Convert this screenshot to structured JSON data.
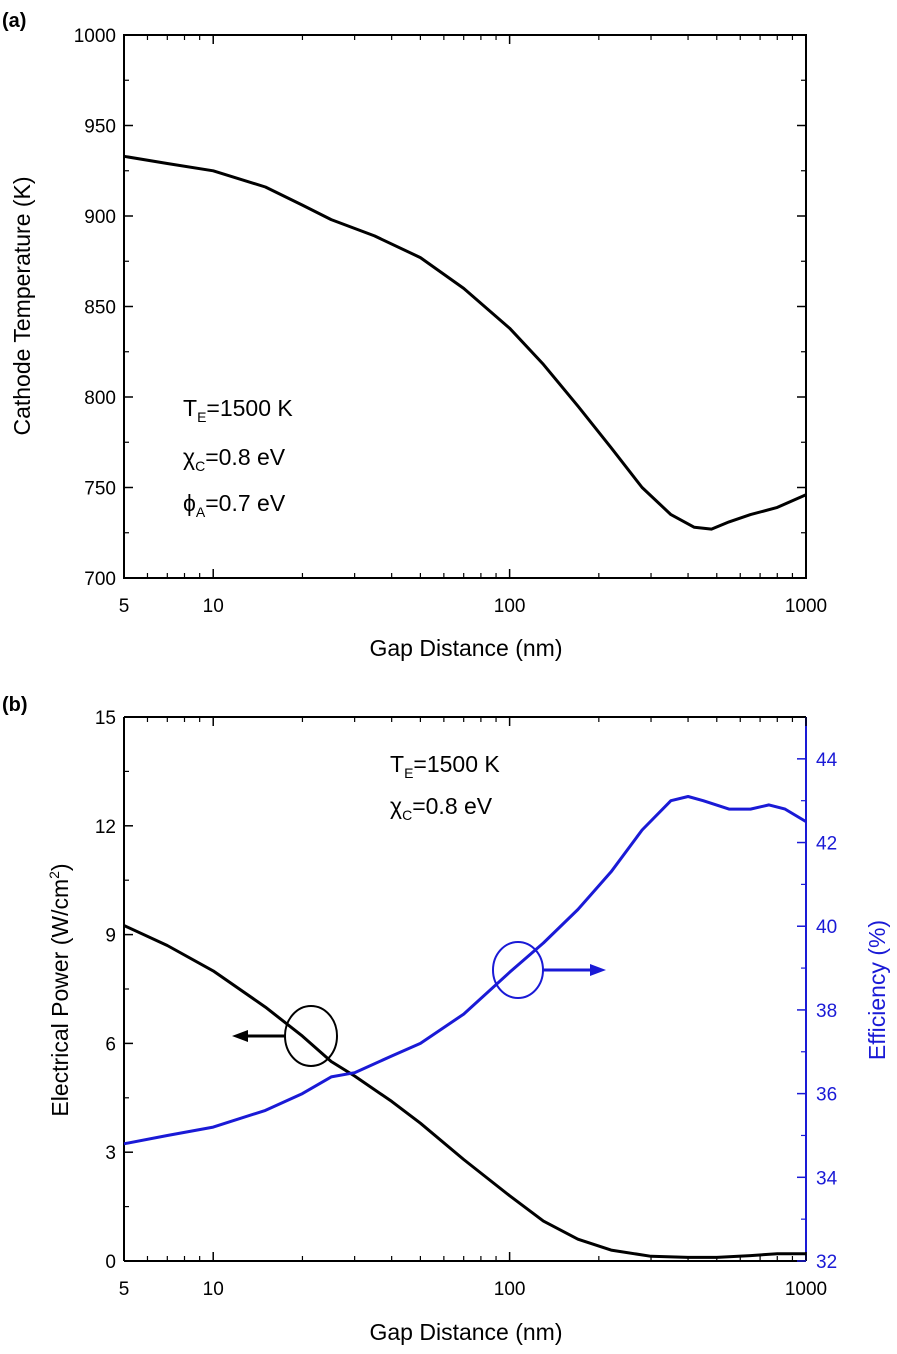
{
  "chart_data": [
    {
      "type": "line",
      "panel_label": "(a)",
      "xscale": "log",
      "xlim": [
        5,
        1000
      ],
      "ylim": [
        700,
        1000
      ],
      "xlabel": "Gap Distance (nm)",
      "ylabel": "Cathode Temperature (K)",
      "x_ticks": [
        5,
        10,
        100,
        1000
      ],
      "x_tick_labels": [
        "5",
        "10",
        "100",
        "1000"
      ],
      "y_ticks": [
        700,
        750,
        800,
        850,
        900,
        950,
        1000
      ],
      "y_tick_labels": [
        "700",
        "750",
        "800",
        "850",
        "900",
        "950",
        "1000"
      ],
      "annotations": {
        "te_main": "T",
        "te_sub": "E",
        "te_val": "=1500 K",
        "chi_main": "χ",
        "chi_sub": "C",
        "chi_val": "=0.8 eV",
        "phi_main": "ϕ",
        "phi_sub": "A",
        "phi_val": "=0.7 eV"
      },
      "series": [
        {
          "name": "Cathode Temperature",
          "color": "#000000",
          "x": [
            5,
            7,
            10,
            15,
            20,
            25,
            35,
            50,
            70,
            100,
            130,
            170,
            220,
            280,
            350,
            420,
            480,
            550,
            650,
            800,
            1000
          ],
          "y": [
            933,
            929,
            925,
            916,
            906,
            898,
            889,
            877,
            860,
            838,
            818,
            795,
            772,
            750,
            735,
            728,
            727,
            731,
            735,
            739,
            746
          ]
        }
      ]
    },
    {
      "type": "line",
      "panel_label": "(b)",
      "xscale": "log",
      "xlim": [
        5,
        1000
      ],
      "ylim": [
        0,
        15
      ],
      "y2lim": [
        32,
        45
      ],
      "xlabel": "Gap Distance (nm)",
      "ylabel_main": "Electrical Power (W/cm",
      "ylabel_sup": "2",
      "ylabel_end": ")",
      "y2label": "Efficiency (%)",
      "x_ticks": [
        5,
        10,
        100,
        1000
      ],
      "x_tick_labels": [
        "5",
        "10",
        "100",
        "1000"
      ],
      "y_ticks": [
        0,
        3,
        6,
        9,
        12,
        15
      ],
      "y_tick_labels": [
        "0",
        "3",
        "6",
        "9",
        "12",
        "15"
      ],
      "y2_ticks": [
        32,
        34,
        36,
        38,
        40,
        42,
        44
      ],
      "y2_tick_labels": [
        "32",
        "34",
        "36",
        "38",
        "40",
        "42",
        "44"
      ],
      "annotations": {
        "te_main": "T",
        "te_sub": "E",
        "te_val": "=1500 K",
        "chi_main": "χ",
        "chi_sub": "C",
        "chi_val": "=0.8 eV"
      },
      "series": [
        {
          "name": "Electrical Power",
          "axis": "left",
          "color": "#000000",
          "x": [
            5,
            7,
            10,
            15,
            20,
            25,
            30,
            40,
            50,
            70,
            100,
            130,
            170,
            220,
            300,
            400,
            500,
            650,
            800,
            1000
          ],
          "y": [
            9.25,
            8.7,
            8.0,
            7.0,
            6.2,
            5.5,
            5.1,
            4.4,
            3.8,
            2.8,
            1.8,
            1.1,
            0.6,
            0.3,
            0.13,
            0.1,
            0.1,
            0.15,
            0.2,
            0.2
          ]
        },
        {
          "name": "Efficiency",
          "axis": "right",
          "color": "#1a1ad6",
          "x": [
            5,
            7,
            10,
            15,
            20,
            25,
            30,
            40,
            50,
            70,
            100,
            130,
            170,
            220,
            280,
            350,
            400,
            450,
            550,
            650,
            750,
            850,
            1000
          ],
          "y": [
            34.8,
            35.0,
            35.2,
            35.6,
            36.0,
            36.4,
            36.5,
            36.9,
            37.2,
            37.9,
            38.9,
            39.6,
            40.4,
            41.3,
            42.3,
            43.0,
            43.1,
            43.0,
            42.8,
            42.8,
            42.9,
            42.8,
            42.5
          ]
        }
      ]
    }
  ]
}
